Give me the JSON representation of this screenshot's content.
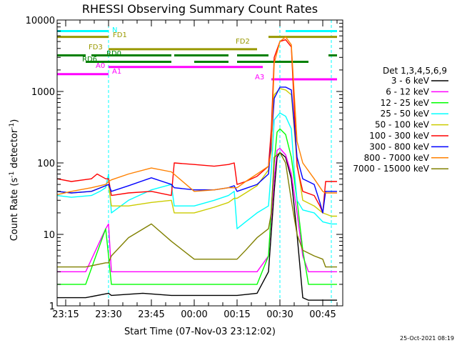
{
  "chart_data": {
    "type": "line",
    "title": "RHESSI Observing Summary Count Rates",
    "xlabel": "Start Time (07-Nov-03 23:12:02)",
    "ylabel": "Count Rate (s⁻¹ detector⁻¹)",
    "ylabel_main": "Count Rate (s",
    "ylabel_sup1": "-1",
    "ylabel_mid": " detector",
    "ylabel_sup2": "-1",
    "ylabel_end": ")",
    "footer": "25-Oct-2021 08:19",
    "y_scale": "log",
    "ylim": [
      1,
      10000
    ],
    "xlim": [
      "23:12",
      "00:52"
    ],
    "y_ticks": [
      {
        "value": 1,
        "label": "1"
      },
      {
        "value": 10,
        "label": "10"
      },
      {
        "value": 100,
        "label": "100"
      },
      {
        "value": 1000,
        "label": "1000"
      },
      {
        "value": 10000,
        "label": "10000"
      }
    ],
    "x_ticks": [
      {
        "value": "23:15",
        "min": 3,
        "label": "23:15"
      },
      {
        "value": "23:30",
        "min": 18,
        "label": "23:30"
      },
      {
        "value": "23:45",
        "min": 33,
        "label": "23:45"
      },
      {
        "value": "00:00",
        "min": 48,
        "label": "00:00"
      },
      {
        "value": "00:15",
        "min": 63,
        "label": "00:15"
      },
      {
        "value": "00:30",
        "min": 78,
        "label": "00:30"
      },
      {
        "value": "00:45",
        "min": 93,
        "label": "00:45"
      }
    ],
    "legend": {
      "placement": "right",
      "header": "Det 1,3,4,5,6,9"
    },
    "series": [
      {
        "name": "3 - 6 keV",
        "color": "#000000",
        "x": [
          0,
          10,
          18,
          19,
          30,
          40,
          48,
          60,
          63,
          70,
          74,
          76,
          77,
          78,
          80,
          82,
          84,
          86,
          88,
          90,
          93,
          96,
          98
        ],
        "y": [
          1.3,
          1.3,
          1.5,
          1.4,
          1.5,
          1.4,
          1.4,
          1.4,
          1.4,
          1.5,
          3,
          40,
          120,
          140,
          120,
          60,
          10,
          1.3,
          1.2,
          1.2,
          1.2,
          1.2,
          1.2
        ]
      },
      {
        "name": "6 - 12 keV",
        "color": "#ff00ff",
        "x": [
          0,
          10,
          17,
          18,
          19,
          25,
          30,
          40,
          48,
          60,
          63,
          70,
          74,
          76,
          77,
          78,
          80,
          82,
          84,
          86,
          88,
          93,
          98
        ],
        "y": [
          3,
          3,
          12,
          14,
          3,
          3,
          3,
          3,
          3,
          3,
          3,
          3,
          5,
          60,
          150,
          160,
          130,
          70,
          20,
          5,
          3,
          3,
          3
        ]
      },
      {
        "name": "12 - 25 keV",
        "color": "#00ff00",
        "x": [
          0,
          10,
          17,
          18,
          19,
          25,
          30,
          40,
          48,
          60,
          63,
          70,
          74,
          76,
          77,
          78,
          80,
          82,
          84,
          86,
          88,
          93,
          98
        ],
        "y": [
          2,
          2,
          12,
          5,
          2,
          2,
          2,
          2,
          2,
          2,
          2,
          2,
          5,
          100,
          270,
          300,
          250,
          120,
          30,
          6,
          2,
          2,
          2
        ]
      },
      {
        "name": "25 - 50 keV",
        "color": "#00ffff",
        "x": [
          0,
          5,
          12,
          15,
          17,
          18,
          19,
          25,
          33,
          40,
          41,
          48,
          55,
          60,
          62,
          63,
          66,
          70,
          74,
          75,
          76,
          78,
          80,
          82,
          83,
          84,
          86,
          90,
          93,
          96,
          98
        ],
        "y": [
          35,
          33,
          35,
          40,
          45,
          70,
          20,
          30,
          42,
          50,
          25,
          25,
          30,
          35,
          40,
          12,
          15,
          20,
          25,
          80,
          400,
          500,
          450,
          300,
          80,
          30,
          22,
          20,
          15,
          14,
          14
        ]
      },
      {
        "name": "50 - 100 keV",
        "color": "#cccc00",
        "x": [
          0,
          5,
          12,
          17,
          18,
          19,
          25,
          33,
          40,
          41,
          48,
          55,
          60,
          62,
          63,
          66,
          70,
          74,
          75,
          76,
          78,
          80,
          82,
          84,
          86,
          90,
          93,
          96,
          98
        ],
        "y": [
          40,
          38,
          40,
          48,
          50,
          25,
          25,
          28,
          30,
          20,
          20,
          24,
          28,
          32,
          32,
          38,
          48,
          80,
          200,
          900,
          1100,
          1050,
          900,
          100,
          30,
          25,
          20,
          18,
          18
        ]
      },
      {
        "name": "100 - 300 keV",
        "color": "#ff0000",
        "x": [
          0,
          5,
          12,
          14,
          17,
          18,
          19,
          25,
          33,
          40,
          41,
          48,
          55,
          60,
          62,
          63,
          66,
          70,
          74,
          75,
          76,
          78,
          80,
          82,
          84,
          86,
          90,
          92,
          93,
          94,
          98
        ],
        "y": [
          60,
          55,
          60,
          70,
          60,
          60,
          35,
          38,
          40,
          35,
          100,
          95,
          90,
          95,
          100,
          50,
          55,
          65,
          90,
          300,
          3000,
          5000,
          5300,
          4200,
          90,
          40,
          35,
          25,
          20,
          55,
          55
        ]
      },
      {
        "name": "300 - 800 keV",
        "color": "#0000ff",
        "x": [
          0,
          5,
          12,
          17,
          18,
          19,
          25,
          33,
          40,
          41,
          48,
          55,
          60,
          62,
          63,
          66,
          70,
          74,
          75,
          76,
          78,
          80,
          82,
          84,
          86,
          90,
          92,
          93,
          94,
          98
        ],
        "y": [
          40,
          38,
          40,
          48,
          50,
          40,
          48,
          62,
          50,
          45,
          42,
          42,
          45,
          48,
          40,
          44,
          50,
          70,
          200,
          800,
          1150,
          1150,
          1050,
          120,
          60,
          50,
          28,
          20,
          40,
          40
        ]
      },
      {
        "name": "800 - 7000 keV",
        "color": "#ff8000",
        "x": [
          0,
          5,
          12,
          17,
          18,
          19,
          25,
          33,
          40,
          48,
          55,
          60,
          63,
          66,
          70,
          74,
          75,
          76,
          78,
          80,
          82,
          84,
          86,
          90,
          93,
          94,
          98
        ],
        "y": [
          36,
          40,
          45,
          50,
          55,
          58,
          70,
          85,
          75,
          40,
          42,
          45,
          45,
          55,
          70,
          90,
          150,
          2500,
          5000,
          5800,
          4500,
          200,
          100,
          60,
          40,
          38,
          38
        ]
      },
      {
        "name": "7000 - 15000 keV",
        "color": "#808000",
        "x": [
          0,
          10,
          17,
          18,
          19,
          25,
          33,
          40,
          48,
          55,
          60,
          63,
          66,
          70,
          74,
          75,
          76,
          78,
          80,
          82,
          84,
          86,
          90,
          93,
          94,
          98
        ],
        "y": [
          3.5,
          3.5,
          4,
          4,
          5,
          9,
          14,
          8,
          4.5,
          4.5,
          4.5,
          4.5,
          6,
          9,
          12,
          20,
          120,
          140,
          100,
          30,
          10,
          6,
          5,
          4.5,
          3.5,
          3.5
        ]
      }
    ],
    "annotations": {
      "title_marker_row_labels": [
        "N",
        "FD1",
        "FD2",
        "FD3",
        "RD0",
        "RD6",
        "A0",
        "A1",
        "A3"
      ],
      "n_label": "N",
      "fd1_label": "FD1",
      "fd2_label": "FD2",
      "fd3_label": "FD3",
      "rd0_label": "RD0",
      "rd6_label": "RD6",
      "a0_label": "A0",
      "a1_label": "A1",
      "a3_label": "A3"
    },
    "flag_bars": [
      {
        "color": "#00ffff",
        "y": 7000,
        "segments": [
          [
            0,
            18
          ],
          [
            80,
            98
          ]
        ]
      },
      {
        "color": "#999900",
        "y": 5800,
        "segments": [
          [
            0,
            18
          ],
          [
            74,
            98
          ]
        ]
      },
      {
        "color": "#999900",
        "y": 3900,
        "segments": [
          [
            18,
            70
          ]
        ]
      },
      {
        "color": "#008000",
        "y": 3200,
        "segments": [
          [
            0,
            10
          ],
          [
            12,
            40
          ],
          [
            41,
            60
          ],
          [
            63,
            74
          ],
          [
            95,
            98
          ]
        ]
      },
      {
        "color": "#008000",
        "y": 2600,
        "segments": [
          [
            10,
            40
          ],
          [
            48,
            60
          ],
          [
            63,
            88
          ]
        ]
      },
      {
        "color": "#ff00ff",
        "y": 2200,
        "segments": [
          [
            18,
            72
          ]
        ]
      },
      {
        "color": "#ff00ff",
        "y": 1750,
        "segments": [
          [
            0,
            18
          ]
        ]
      },
      {
        "color": "#ff00ff",
        "y": 1480,
        "segments": [
          [
            75,
            98
          ]
        ]
      }
    ],
    "vertical_markers": [
      {
        "color": "#00ffff",
        "min": 18,
        "style": "dashed"
      },
      {
        "color": "#00ffff",
        "min": 78,
        "style": "dashed"
      },
      {
        "color": "#00ffff",
        "min": 96,
        "style": "dashed"
      }
    ]
  }
}
